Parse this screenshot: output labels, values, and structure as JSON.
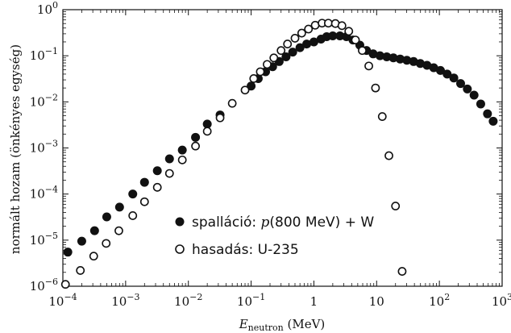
{
  "chart_data": {
    "type": "scatter",
    "xscale": "log",
    "yscale": "log",
    "xlim": [
      0.0001,
      1000
    ],
    "ylim": [
      1e-06,
      1
    ],
    "xticks": [
      0.0001,
      0.001,
      0.01,
      0.1,
      1,
      10,
      100,
      1000
    ],
    "yticks": [
      1e-06,
      1e-05,
      0.0001,
      0.001,
      0.01,
      0.1,
      1
    ],
    "xtick_labels": [
      {
        "base": "10",
        "exp": "−4"
      },
      {
        "base": "10",
        "exp": "−3"
      },
      {
        "base": "10",
        "exp": "−2"
      },
      {
        "base": "10",
        "exp": "−1"
      },
      {
        "base": "1",
        "exp": ""
      },
      {
        "base": "10",
        "exp": ""
      },
      {
        "base": "10",
        "exp": "2"
      },
      {
        "base": "10",
        "exp": "3"
      }
    ],
    "ytick_labels": [
      {
        "base": "10",
        "exp": "−6"
      },
      {
        "base": "10",
        "exp": "−5"
      },
      {
        "base": "10",
        "exp": "−4"
      },
      {
        "base": "10",
        "exp": "−3"
      },
      {
        "base": "10",
        "exp": "−2"
      },
      {
        "base": "10",
        "exp": "−1"
      },
      {
        "base": "10",
        "exp": "0"
      }
    ],
    "xlabel": {
      "main": "E",
      "sub": "neutron",
      "unit": " (MeV)"
    },
    "ylabel": "normált hozam (önkényes egység)",
    "legend_position": "bottom-center",
    "series": [
      {
        "name_parts": [
          "spalláció: ",
          "p",
          "(800 MeV) + W"
        ],
        "marker": "filled-circle",
        "color": "#111111",
        "x": [
          0.00012,
          0.0002,
          0.00032,
          0.0005,
          0.0008,
          0.0013,
          0.002,
          0.0032,
          0.005,
          0.008,
          0.013,
          0.02,
          0.032,
          0.1,
          0.13,
          0.17,
          0.22,
          0.28,
          0.36,
          0.46,
          0.6,
          0.77,
          1.0,
          1.3,
          1.6,
          2.0,
          2.6,
          3.3,
          4.2,
          5.4,
          6.9,
          8.8,
          11.3,
          14.5,
          18.5,
          23.7,
          30.3,
          38.8,
          49.6,
          63.5,
          81.2,
          104,
          133,
          170,
          218,
          279,
          357,
          456,
          584,
          720
        ],
        "y": [
          5.5e-06,
          9.5e-06,
          1.6e-05,
          3.2e-05,
          5.2e-05,
          0.0001,
          0.00018,
          0.00032,
          0.00058,
          0.0009,
          0.0017,
          0.0033,
          0.0052,
          0.022,
          0.032,
          0.045,
          0.058,
          0.075,
          0.095,
          0.12,
          0.15,
          0.18,
          0.2,
          0.23,
          0.26,
          0.27,
          0.27,
          0.26,
          0.22,
          0.17,
          0.13,
          0.11,
          0.1,
          0.095,
          0.09,
          0.085,
          0.08,
          0.075,
          0.068,
          0.062,
          0.055,
          0.048,
          0.04,
          0.033,
          0.025,
          0.019,
          0.014,
          0.009,
          0.0055,
          0.0038
        ]
      },
      {
        "name_parts": [
          "hasadás: U-235"
        ],
        "marker": "open-circle",
        "color": "#111111",
        "x": [
          0.00011,
          0.00019,
          0.00031,
          0.00049,
          0.00078,
          0.0013,
          0.002,
          0.0032,
          0.005,
          0.008,
          0.013,
          0.02,
          0.032,
          0.05,
          0.08,
          0.11,
          0.14,
          0.18,
          0.23,
          0.3,
          0.38,
          0.5,
          0.64,
          0.82,
          1.05,
          1.35,
          1.7,
          2.2,
          2.8,
          3.6,
          4.6,
          5.9,
          7.5,
          9.6,
          12.3,
          15.7,
          20.0,
          25.5
        ],
        "y": [
          1.1e-06,
          2.2e-06,
          4.5e-06,
          8.5e-06,
          1.6e-05,
          3.4e-05,
          6.8e-05,
          0.00014,
          0.00028,
          0.00055,
          0.0011,
          0.0023,
          0.0045,
          0.0093,
          0.018,
          0.032,
          0.045,
          0.065,
          0.09,
          0.13,
          0.18,
          0.24,
          0.31,
          0.38,
          0.46,
          0.51,
          0.51,
          0.5,
          0.45,
          0.34,
          0.22,
          0.13,
          0.06,
          0.02,
          0.0048,
          0.00068,
          5.5e-05,
          2.1e-06
        ]
      }
    ]
  }
}
